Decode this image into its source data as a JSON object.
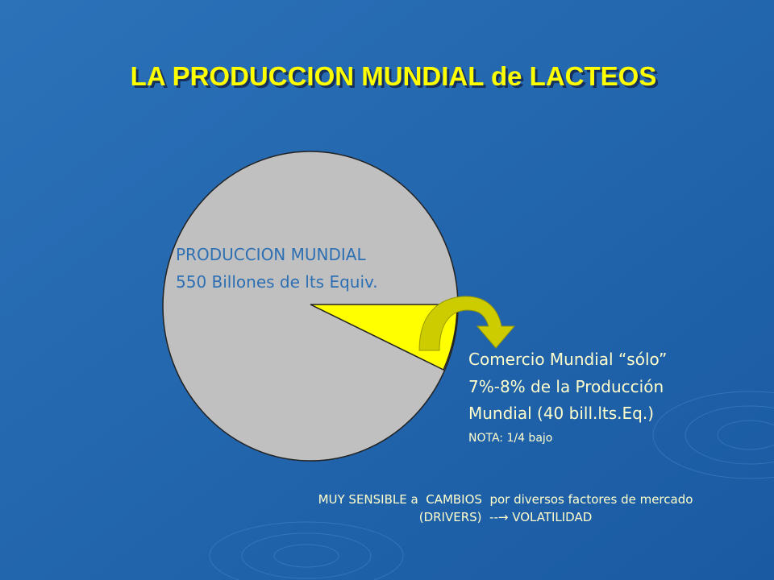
{
  "title": "LA PRODUCCION MUNDIAL de LACTEOS",
  "pie": {
    "label_lines": [
      "PRODUCCION MUNDIAL",
      "550 Billones de lts Equiv."
    ]
  },
  "callout": {
    "lines": [
      "Comercio Mundial “sólo”",
      "7%-8% de la Producción",
      "Mundial (40 bill.lts.Eq.)"
    ],
    "note": "NOTA: 1/4 bajo"
  },
  "footer": {
    "lines": [
      "MUY SENSIBLE a  CAMBIOS  por diversos factores de mercado",
      "(DRIVERS)  --→ VOLATILIDAD"
    ]
  }
}
